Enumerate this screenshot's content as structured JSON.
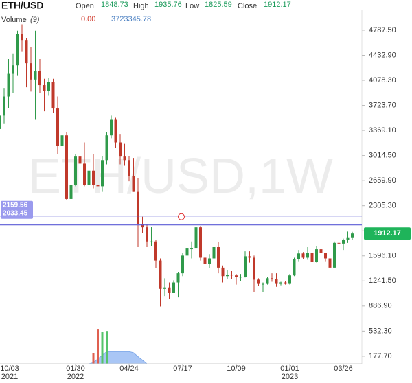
{
  "chart_data": {
    "type": "candlestick",
    "title": "ETH/USD",
    "ohlc_labels": [
      "Open",
      "High",
      "Low",
      "Close"
    ],
    "ohlc_values": [
      1848.73,
      1935.76,
      1825.59,
      1912.17
    ],
    "volume_label": "Volume",
    "volume_period": "(9)",
    "volume_readouts": [
      {
        "value": 0,
        "label": "0.00"
      },
      {
        "value": 3723345.78,
        "label": "3723345.78"
      }
    ],
    "watermark": "ETH/USD,1W",
    "categories": [
      "10/03",
      null,
      null,
      null,
      null,
      null,
      null,
      null,
      null,
      null,
      null,
      null,
      null,
      null,
      null,
      null,
      null,
      "01/30",
      null,
      null,
      null,
      null,
      null,
      null,
      null,
      null,
      null,
      null,
      null,
      "04/24",
      null,
      null,
      null,
      null,
      null,
      null,
      null,
      null,
      null,
      null,
      null,
      "07/17",
      null,
      null,
      null,
      null,
      null,
      null,
      null,
      null,
      null,
      null,
      null,
      "10/09",
      null,
      null,
      null,
      null,
      null,
      null,
      null,
      null,
      null,
      null,
      null,
      "01/01",
      null,
      null,
      null,
      null,
      null,
      null,
      null,
      null,
      null,
      null,
      null,
      "03/26",
      null,
      null
    ],
    "category_years": [
      "2021",
      null,
      null,
      null,
      null,
      null,
      null,
      null,
      null,
      null,
      null,
      null,
      null,
      null,
      null,
      null,
      null,
      "2022",
      null,
      null,
      null,
      null,
      null,
      null,
      null,
      null,
      null,
      null,
      null,
      null,
      null,
      null,
      null,
      null,
      null,
      null,
      null,
      null,
      null,
      null,
      null,
      null,
      null,
      null,
      null,
      null,
      null,
      null,
      null,
      null,
      null,
      null,
      null,
      null,
      null,
      null,
      null,
      null,
      null,
      null,
      null,
      null,
      null,
      null,
      null,
      "2023",
      null,
      null,
      null,
      null,
      null,
      null,
      null,
      null,
      null,
      null,
      null,
      null,
      null,
      null
    ],
    "open": [
      3390,
      3580,
      3850,
      4170,
      4290,
      4730,
      4640,
      4320,
      4090,
      4210,
      4010,
      3930,
      4050,
      3680,
      3150,
      3300,
      2400,
      2600,
      3000,
      2900,
      2600,
      2800,
      2600,
      2580,
      2950,
      3300,
      3520,
      3200,
      3000,
      2950,
      2720,
      2500,
      2050,
      2000,
      1800,
      1800,
      1530,
      1130,
      1150,
      1070,
      1220,
      1350,
      1600,
      1700,
      1700,
      2000,
      1570,
      1480,
      1560,
      1720,
      1430,
      1310,
      1330,
      1320,
      1300,
      1300,
      1590,
      1570,
      1260,
      1200,
      1200,
      1280,
      1270,
      1200,
      1220,
      1200,
      1320,
      1550,
      1630,
      1570,
      1640,
      1510,
      1690,
      1640,
      1560,
      1430,
      1780,
      1770,
      1820,
      1848.73
    ],
    "high": [
      3640,
      3970,
      4380,
      4460,
      4780,
      4870,
      4670,
      4550,
      4780,
      4380,
      4100,
      4110,
      4100,
      3850,
      3400,
      3350,
      2670,
      3030,
      3280,
      3200,
      2980,
      3040,
      2700,
      3010,
      3350,
      3580,
      3550,
      3320,
      3180,
      3010,
      2980,
      2700,
      2150,
      2040,
      2010,
      1820,
      1560,
      1280,
      1220,
      1250,
      1370,
      1640,
      1790,
      1800,
      2000,
      2020,
      1700,
      1620,
      1790,
      1790,
      1460,
      1400,
      1380,
      1340,
      1340,
      1660,
      1660,
      1600,
      1280,
      1220,
      1300,
      1350,
      1350,
      1230,
      1240,
      1340,
      1570,
      1680,
      1650,
      1720,
      1680,
      1740,
      1720,
      1640,
      1570,
      1800,
      1830,
      1840,
      1940,
      1935.76
    ],
    "low": [
      3280,
      3470,
      3680,
      3900,
      4150,
      4480,
      3980,
      3920,
      3520,
      3900,
      3640,
      3860,
      3620,
      3040,
      3000,
      2380,
      2160,
      2580,
      2870,
      2580,
      2300,
      2550,
      2430,
      2500,
      2890,
      3260,
      3120,
      2890,
      2870,
      2650,
      2500,
      1720,
      1920,
      1720,
      1740,
      1420,
      880,
      1030,
      990,
      1070,
      1010,
      1310,
      1430,
      1560,
      1660,
      1530,
      1420,
      1420,
      1530,
      1350,
      1220,
      1270,
      1270,
      1190,
      1240,
      1290,
      1500,
      1080,
      1170,
      1080,
      1190,
      1230,
      1160,
      1180,
      1190,
      1190,
      1310,
      1520,
      1550,
      1540,
      1460,
      1500,
      1610,
      1520,
      1370,
      1430,
      1680,
      1680,
      1780,
      1825.59
    ],
    "close": [
      3580,
      3850,
      4170,
      4290,
      4730,
      4640,
      4320,
      4090,
      4210,
      4010,
      3930,
      4050,
      3680,
      3150,
      3300,
      2400,
      2600,
      3000,
      2900,
      2600,
      2800,
      2600,
      2580,
      2950,
      3300,
      3520,
      3200,
      3000,
      2950,
      2720,
      2500,
      2050,
      2000,
      1800,
      1800,
      1530,
      1130,
      1150,
      1070,
      1220,
      1350,
      1600,
      1700,
      1700,
      2000,
      1570,
      1480,
      1560,
      1720,
      1430,
      1310,
      1330,
      1320,
      1300,
      1300,
      1590,
      1570,
      1260,
      1200,
      1200,
      1280,
      1270,
      1200,
      1220,
      1200,
      1320,
      1550,
      1630,
      1570,
      1640,
      1510,
      1690,
      1640,
      1560,
      1430,
      1780,
      1770,
      1820,
      1848.73,
      1912.17
    ],
    "volume": [
      0,
      0,
      0,
      0,
      0,
      0,
      0,
      0,
      0,
      0,
      0,
      0,
      0,
      0,
      0,
      0,
      0,
      0,
      0,
      0,
      0,
      15000000,
      48000000,
      45000000,
      46000000,
      0,
      0,
      0,
      0,
      0,
      0,
      0,
      0,
      0,
      0,
      0,
      0,
      0,
      0,
      0,
      0,
      0,
      0,
      0,
      0,
      0,
      0,
      0,
      0,
      0,
      0,
      0,
      0,
      0,
      0,
      0,
      0,
      0,
      0,
      0,
      0,
      0,
      0,
      0,
      0,
      0,
      0,
      0,
      0,
      0,
      0,
      0,
      0,
      0,
      0,
      0,
      0,
      0,
      0,
      0
    ],
    "volume_ma": [
      0,
      0,
      0,
      0,
      0,
      0,
      0,
      0,
      0,
      0,
      0,
      0,
      0,
      0,
      0,
      0,
      0,
      0,
      0,
      0,
      0,
      1666667,
      7000000,
      12000000,
      17111111,
      17111111,
      17111111,
      17111111,
      17111111,
      17111111,
      15444444,
      10111111,
      5111111,
      0,
      0,
      0,
      0,
      0,
      0,
      0,
      0,
      0,
      0,
      0,
      0,
      0,
      0,
      0,
      0,
      0,
      0,
      0,
      0,
      0,
      0,
      0,
      0,
      0,
      0,
      0,
      0,
      0,
      0,
      0,
      0,
      0,
      0,
      0,
      0,
      0,
      0,
      0,
      0,
      0,
      0,
      0,
      0,
      0,
      0,
      0
    ],
    "volume_ylim": [
      0,
      50000000
    ],
    "ylim": [
      70,
      5020
    ],
    "yticks": [
      {
        "value": 177.7,
        "label": "177.70"
      },
      {
        "value": 532.3,
        "label": "532.30"
      },
      {
        "value": 886.9,
        "label": "886.90"
      },
      {
        "value": 1241.5,
        "label": "1241.50"
      },
      {
        "value": 1596.1,
        "label": "1596.10"
      },
      {
        "value": 1950.7,
        "label": "1950.70"
      },
      {
        "value": 2305.3,
        "label": "2305.30"
      },
      {
        "value": 2659.9,
        "label": "2659.90"
      },
      {
        "value": 3014.5,
        "label": "3014.50"
      },
      {
        "value": 3369.1,
        "label": "3369.10"
      },
      {
        "value": 3723.7,
        "label": "3723.70"
      },
      {
        "value": 4078.3,
        "label": "4078.30"
      },
      {
        "value": 4432.9,
        "label": "4432.90"
      },
      {
        "value": 4787.5,
        "label": "4787.50"
      }
    ],
    "hlines": [
      2159.56,
      2033.45
    ],
    "last_price": 1912.17,
    "up_color": "#2f9a4a",
    "down_color": "#c0392b",
    "hline_color": "#5b5bd6",
    "volume_ma_color": "#a9c6f5"
  }
}
